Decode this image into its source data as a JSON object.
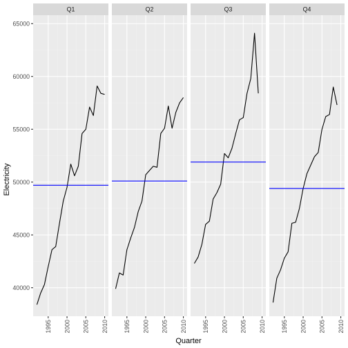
{
  "chart_data": {
    "type": "line",
    "facets": [
      "Q1",
      "Q2",
      "Q3",
      "Q4"
    ],
    "xlabel": "Quarter",
    "ylabel": "Electricity",
    "xlim": [
      1991,
      2011
    ],
    "ylim": [
      37300,
      65800
    ],
    "x_ticks": [
      1995,
      2000,
      2005,
      2010
    ],
    "y_ticks": [
      40000,
      45000,
      50000,
      55000,
      60000,
      65000
    ],
    "years": [
      1992,
      1993,
      1994,
      1995,
      1996,
      1997,
      1998,
      1999,
      2000,
      2001,
      2002,
      2003,
      2004,
      2005,
      2006,
      2007,
      2008,
      2009,
      2010
    ],
    "series": [
      {
        "name": "Q1",
        "values": [
          38400,
          39500,
          40300,
          42000,
          43600,
          43900,
          46100,
          48200,
          49500,
          51700,
          50600,
          51500,
          54600,
          55000,
          57100,
          56300,
          59100,
          58400,
          58300
        ],
        "mean": 49700
      },
      {
        "name": "Q2",
        "values": [
          39900,
          41400,
          41200,
          43600,
          44700,
          45700,
          47200,
          48200,
          50700,
          51100,
          51500,
          51400,
          54600,
          55100,
          57200,
          55100,
          56600,
          57500,
          58000
        ],
        "mean": 50100
      },
      {
        "name": "Q3",
        "values": [
          42300,
          42900,
          44100,
          46000,
          46300,
          48400,
          49000,
          49800,
          52700,
          52300,
          53200,
          54600,
          55900,
          56100,
          58400,
          59800,
          64100,
          58400
        ],
        "mean": 51900
      },
      {
        "name": "Q4",
        "values": [
          38600,
          40900,
          41700,
          42800,
          43400,
          46100,
          46200,
          47500,
          49400,
          50800,
          51600,
          52400,
          52800,
          55000,
          56200,
          56400,
          59000,
          57300
        ],
        "mean": 49400
      }
    ],
    "colors": {
      "panel_bg": "#ebebeb",
      "grid_major": "#ffffff",
      "grid_minor": "#f2f2f2",
      "strip_bg": "#d9d9d9",
      "line": "#000000",
      "mean_line": "#0000ff"
    },
    "grid": true
  }
}
